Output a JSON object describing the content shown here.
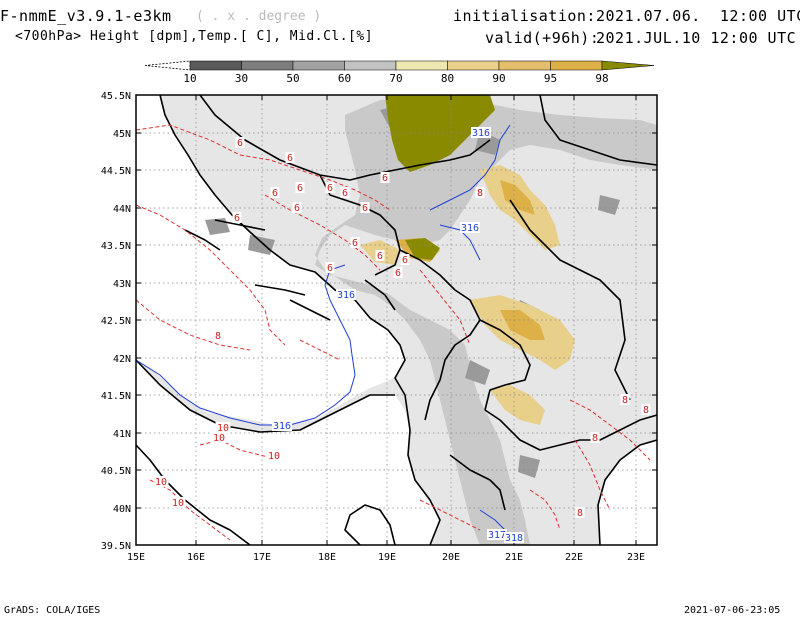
{
  "header": {
    "model": "F-nmmE_v3.9.1-e3km",
    "model_units": "( . x . degree )",
    "variables": "<700hPa> Height [dpm],Temp.[ C], Mid.Cl.[%]",
    "init_label": "initialisation:",
    "init_value": "2021.07.06.  12:00 UTC",
    "valid_label": "valid(+96h):",
    "valid_value": "2021.JUL.10 12:00 UTC"
  },
  "colorbar": {
    "labels": [
      "10",
      "30",
      "50",
      "60",
      "70",
      "80",
      "90",
      "95",
      "98"
    ],
    "colors": [
      "#5a5a5a",
      "#7d7d7d",
      "#a1a1a1",
      "#c2c2c2",
      "#efe7b0",
      "#ead08a",
      "#e4bf6b",
      "#ddb148",
      "#8a8a00"
    ]
  },
  "map": {
    "lat_labels": [
      "45.5N",
      "45N",
      "44.5N",
      "44N",
      "43.5N",
      "43N",
      "42.5N",
      "42N",
      "41.5N",
      "41N",
      "40.5N",
      "40N",
      "39.5N"
    ],
    "lon_labels": [
      "15E",
      "16E",
      "17E",
      "18E",
      "19E",
      "20E",
      "21E",
      "22E",
      "23E"
    ],
    "height_labels": [
      "316",
      "316",
      "316",
      "316",
      "317",
      "318"
    ],
    "temp_labels": [
      "6",
      "6",
      "6",
      "6",
      "6",
      "6",
      "6",
      "6",
      "6",
      "6",
      "6",
      "6",
      "6",
      "6",
      "6",
      "8",
      "8",
      "8",
      "8",
      "8",
      "8",
      "10",
      "10",
      "10",
      "10",
      "10"
    ],
    "colors": {
      "land": "#e6e6e6",
      "height_contour": "#1f3fd6",
      "temp_contour": "#e03030",
      "borders": "#000000",
      "grid": "#888888"
    }
  },
  "footer": {
    "left": "GrADS: COLA/IGES",
    "right": "2021-07-06-23:05"
  }
}
